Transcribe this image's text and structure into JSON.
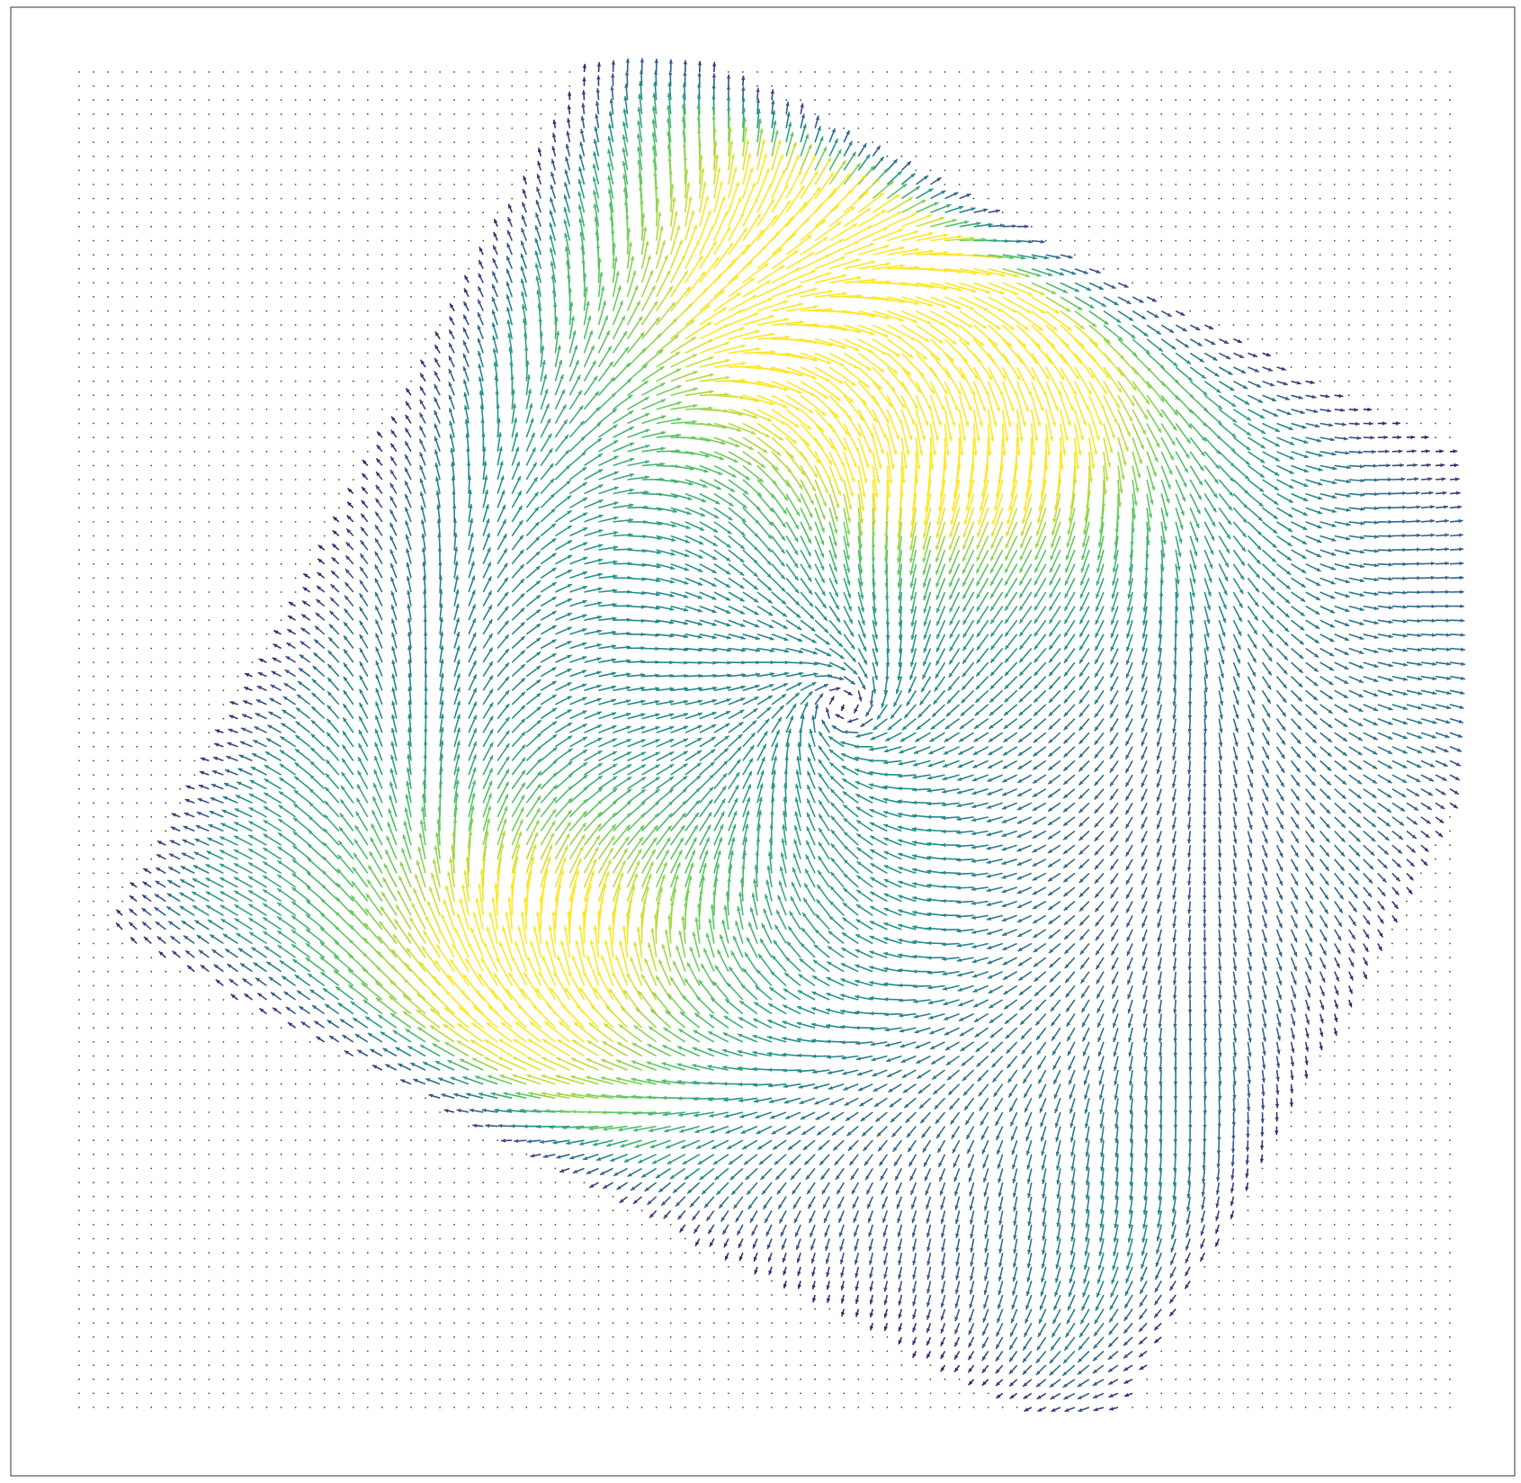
{
  "chart_data": {
    "type": "quiver",
    "title": "",
    "xlabel": "",
    "ylabel": "",
    "axes_visible": false,
    "frame": true,
    "grid": false,
    "legend": "none",
    "grid_size": {
      "nx": 96,
      "ny": 96
    },
    "x_range": [
      0,
      95
    ],
    "y_range": [
      0,
      95
    ],
    "colormap": "viridis",
    "field": {
      "description_of_shape": "rotated square (diamond) region of a stretched vector field; outside the region vectors are near-zero and drawn as dots",
      "region_center": [
        54,
        47
      ],
      "region_half_width": 39,
      "region_half_height": 37,
      "region_rotation_deg": -28,
      "vortex_center": [
        53,
        45
      ],
      "hot_spots": [
        {
          "center": [
            60,
            22
          ],
          "magnitude": 1.0
        },
        {
          "center": [
            32,
            63
          ],
          "magnitude": 0.82
        },
        {
          "center": [
            46,
            13
          ],
          "magnitude": 0.55
        }
      ],
      "max_magnitude": 1.0
    },
    "colors": {
      "low": "#3b1f6e",
      "mid": "#21918c",
      "high": "#fde725",
      "frame": "#555555",
      "dot": "#444444"
    }
  }
}
